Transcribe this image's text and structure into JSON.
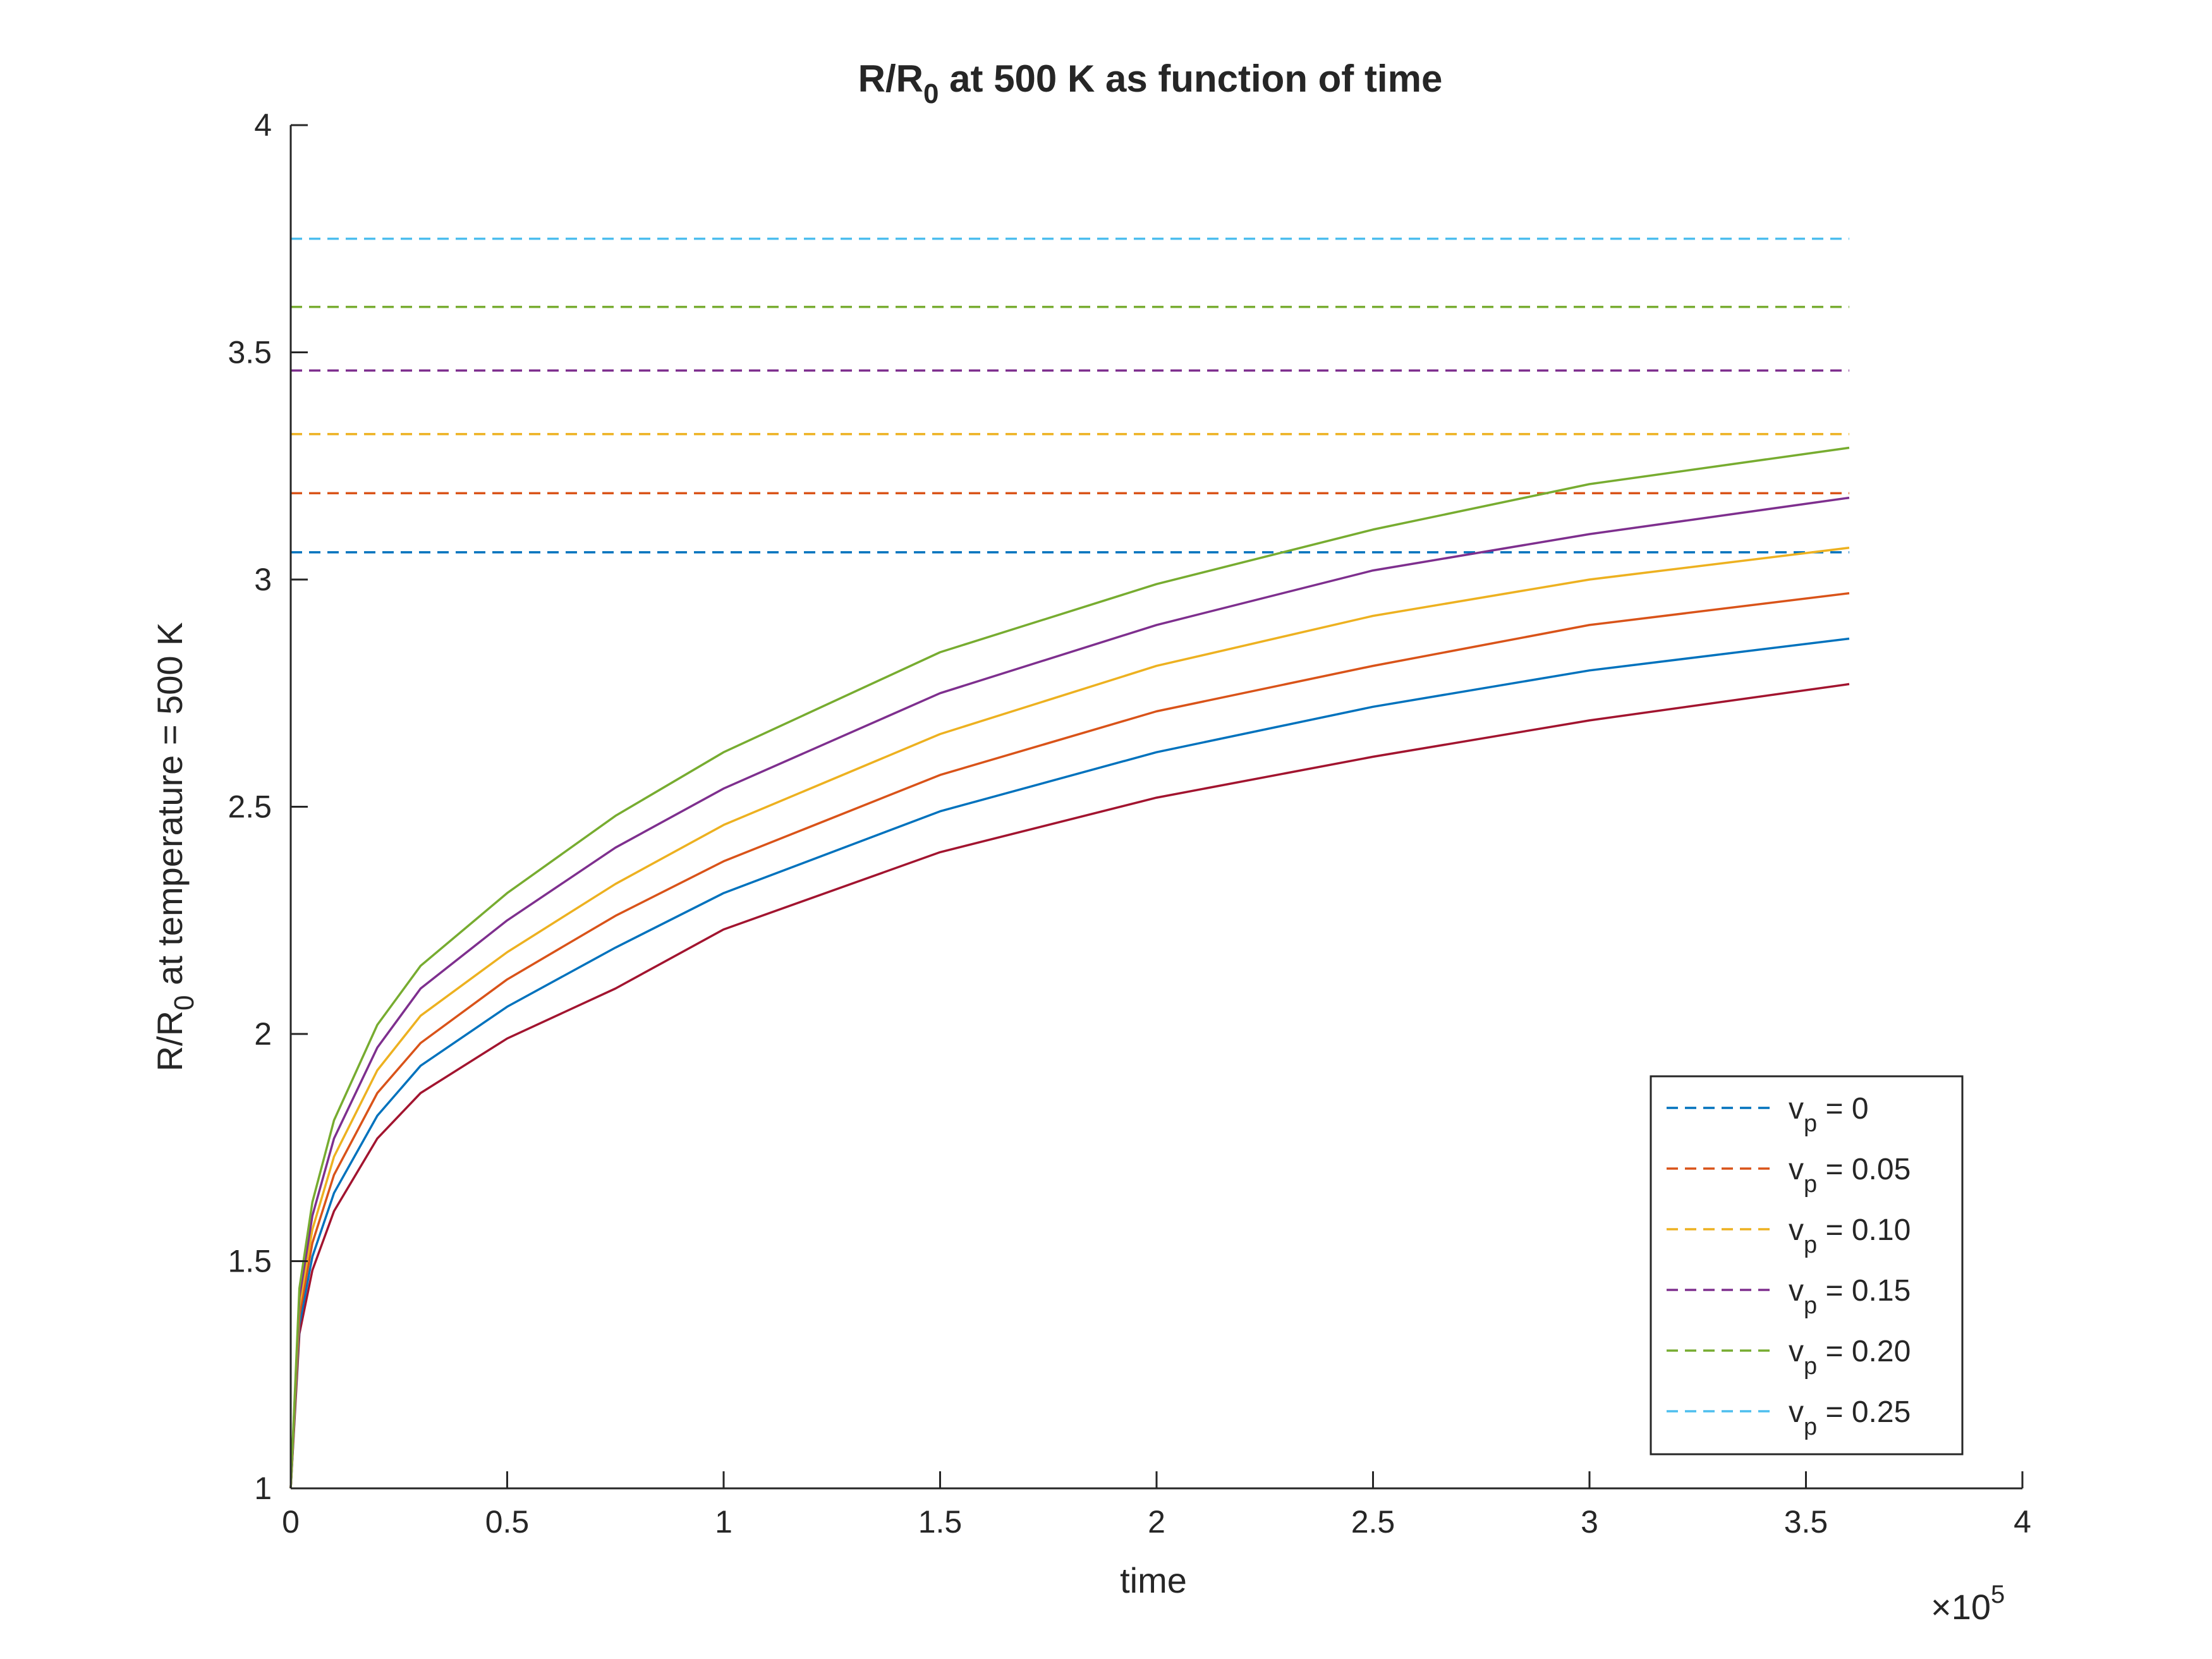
{
  "chart_data": {
    "type": "line",
    "title": {
      "main": "R/R",
      "sub": "0",
      "rest": " at 500 K as function of time"
    },
    "xlabel": "time",
    "ylabel": {
      "main": "R/R",
      "sub": "0",
      "rest": " at temperature = 500 K"
    },
    "x_exponent": {
      "base": "×10",
      "power": "5"
    },
    "xlim": [
      0,
      400000
    ],
    "ylim": [
      1,
      4
    ],
    "xticks": [
      0,
      50000,
      100000,
      150000,
      200000,
      250000,
      300000,
      350000,
      400000
    ],
    "xtick_labels": [
      "0",
      "0.5",
      "1",
      "1.5",
      "2",
      "2.5",
      "3",
      "3.5",
      "4"
    ],
    "yticks": [
      1,
      1.5,
      2,
      2.5,
      3,
      3.5,
      4
    ],
    "ytick_labels": [
      "1",
      "1.5",
      "2",
      "2.5",
      "3",
      "3.5",
      "4"
    ],
    "grid": false,
    "legend_position": "bottom-right",
    "x_end": 360000,
    "dashed_series": [
      {
        "label": "v",
        "sub": "p",
        "rest": " = 0",
        "value": 3.06,
        "color": "#0072bd"
      },
      {
        "label": "v",
        "sub": "p",
        "rest": " = 0.05",
        "value": 3.19,
        "color": "#d95319"
      },
      {
        "label": "v",
        "sub": "p",
        "rest": " = 0.10",
        "value": 3.32,
        "color": "#edb120"
      },
      {
        "label": "v",
        "sub": "p",
        "rest": " = 0.15",
        "value": 3.46,
        "color": "#7e2f8e"
      },
      {
        "label": "v",
        "sub": "p",
        "rest": " = 0.20",
        "value": 3.6,
        "color": "#77ac30"
      },
      {
        "label": "v",
        "sub": "p",
        "rest": " = 0.25",
        "value": 3.75,
        "color": "#4dbeee"
      }
    ],
    "solid_series": [
      {
        "color": "#a2142f",
        "points": [
          [
            0,
            1
          ],
          [
            2000,
            1.34
          ],
          [
            5000,
            1.48
          ],
          [
            10000,
            1.61
          ],
          [
            20000,
            1.77
          ],
          [
            30000,
            1.87
          ],
          [
            50000,
            1.99
          ],
          [
            75000,
            2.1
          ],
          [
            100000,
            2.23
          ],
          [
            150000,
            2.4
          ],
          [
            200000,
            2.52
          ],
          [
            250000,
            2.61
          ],
          [
            300000,
            2.69
          ],
          [
            360000,
            2.77
          ]
        ]
      },
      {
        "color": "#0072bd",
        "points": [
          [
            0,
            1
          ],
          [
            2000,
            1.36
          ],
          [
            5000,
            1.51
          ],
          [
            10000,
            1.65
          ],
          [
            20000,
            1.82
          ],
          [
            30000,
            1.93
          ],
          [
            50000,
            2.06
          ],
          [
            75000,
            2.19
          ],
          [
            100000,
            2.31
          ],
          [
            150000,
            2.49
          ],
          [
            200000,
            2.62
          ],
          [
            250000,
            2.72
          ],
          [
            300000,
            2.8
          ],
          [
            360000,
            2.87
          ]
        ]
      },
      {
        "color": "#d95319",
        "points": [
          [
            0,
            1
          ],
          [
            2000,
            1.38
          ],
          [
            5000,
            1.54
          ],
          [
            10000,
            1.69
          ],
          [
            20000,
            1.87
          ],
          [
            30000,
            1.98
          ],
          [
            50000,
            2.12
          ],
          [
            75000,
            2.26
          ],
          [
            100000,
            2.38
          ],
          [
            150000,
            2.57
          ],
          [
            200000,
            2.71
          ],
          [
            250000,
            2.81
          ],
          [
            300000,
            2.9
          ],
          [
            360000,
            2.97
          ]
        ]
      },
      {
        "color": "#edb120",
        "points": [
          [
            0,
            1
          ],
          [
            2000,
            1.4
          ],
          [
            5000,
            1.57
          ],
          [
            10000,
            1.73
          ],
          [
            20000,
            1.92
          ],
          [
            30000,
            2.04
          ],
          [
            50000,
            2.18
          ],
          [
            75000,
            2.33
          ],
          [
            100000,
            2.46
          ],
          [
            150000,
            2.66
          ],
          [
            200000,
            2.81
          ],
          [
            250000,
            2.92
          ],
          [
            300000,
            3.0
          ],
          [
            360000,
            3.07
          ]
        ]
      },
      {
        "color": "#7e2f8e",
        "points": [
          [
            0,
            1
          ],
          [
            2000,
            1.42
          ],
          [
            5000,
            1.6
          ],
          [
            10000,
            1.77
          ],
          [
            20000,
            1.97
          ],
          [
            30000,
            2.1
          ],
          [
            50000,
            2.25
          ],
          [
            75000,
            2.41
          ],
          [
            100000,
            2.54
          ],
          [
            150000,
            2.75
          ],
          [
            200000,
            2.9
          ],
          [
            250000,
            3.02
          ],
          [
            300000,
            3.1
          ],
          [
            360000,
            3.18
          ]
        ]
      },
      {
        "color": "#77ac30",
        "points": [
          [
            0,
            1
          ],
          [
            2000,
            1.44
          ],
          [
            5000,
            1.63
          ],
          [
            10000,
            1.81
          ],
          [
            20000,
            2.02
          ],
          [
            30000,
            2.15
          ],
          [
            50000,
            2.31
          ],
          [
            75000,
            2.48
          ],
          [
            100000,
            2.62
          ],
          [
            150000,
            2.84
          ],
          [
            200000,
            2.99
          ],
          [
            250000,
            3.11
          ],
          [
            300000,
            3.21
          ],
          [
            360000,
            3.29
          ]
        ]
      }
    ]
  }
}
